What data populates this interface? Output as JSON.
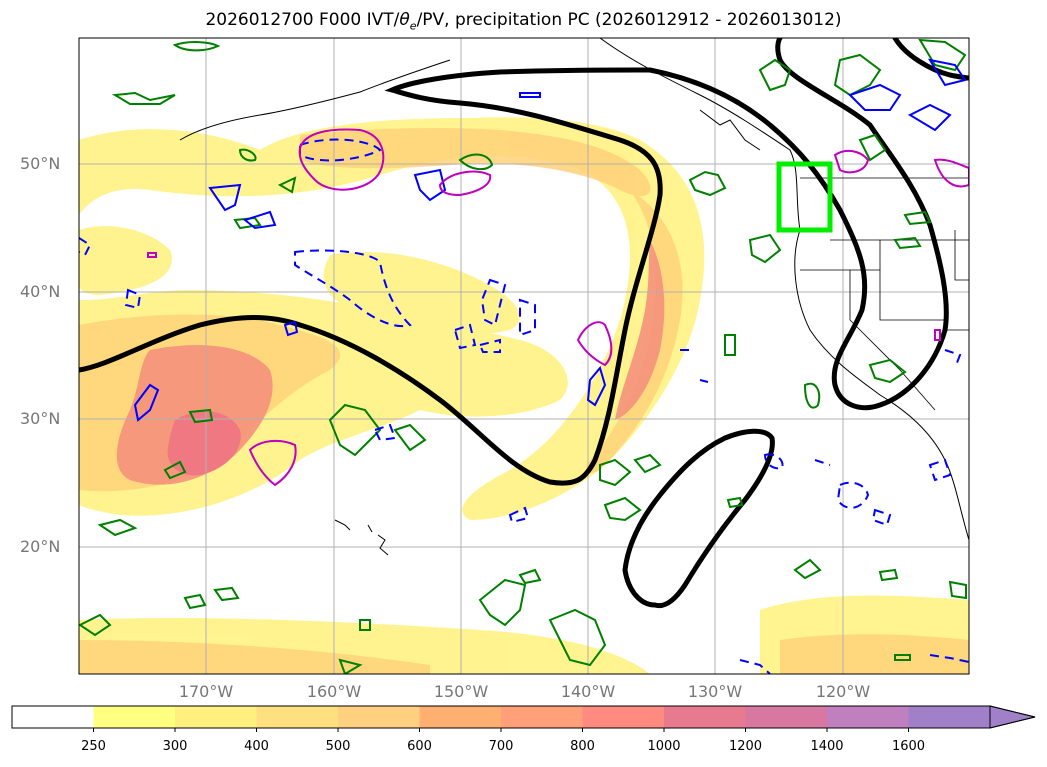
{
  "title_prefix": "2026012700 F000 IVT/",
  "title_theta": "θ",
  "title_theta_sub": "e",
  "title_suffix": "/PV, precipitation PC (2026012912 - 2026013012)",
  "lat_labels": [
    "50°N",
    "40°N",
    "30°N",
    "20°N"
  ],
  "lon_labels": [
    "170°W",
    "160°W",
    "150°W",
    "140°W",
    "130°W",
    "120°W"
  ],
  "colorbar": {
    "ticks": [
      "250",
      "300",
      "400",
      "500",
      "600",
      "700",
      "800",
      "1000",
      "1200",
      "1400",
      "1600"
    ],
    "colors": [
      "#ffffff",
      "#ffff80",
      "#fff080",
      "#ffe080",
      "#ffd080",
      "#ffb070",
      "#ffa078",
      "#ff8a80",
      "#e87a90",
      "#d878a0",
      "#c080c0",
      "#a080c8"
    ]
  },
  "colors": {
    "ivt_fill": "#ffd27a",
    "ivt_core": "#f58a7a",
    "pv_contour": "#000000",
    "theta_e_pos": "#008000",
    "theta_e_neg": "#0000ff",
    "pv_magenta": "#c000c0",
    "target_box": "#00ee00"
  }
}
